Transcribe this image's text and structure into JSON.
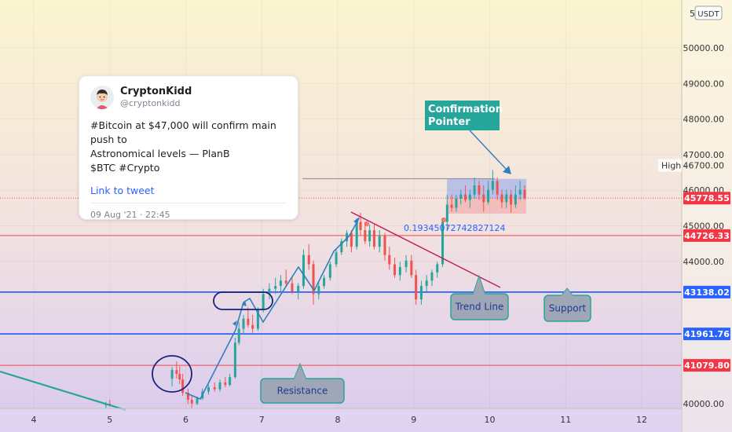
{
  "chart_data": {
    "type": "candlestick",
    "x_ticks": [
      "4",
      "5",
      "6",
      "7",
      "8",
      "9",
      "10",
      "11",
      "12"
    ],
    "y_ticks": [
      "40000.00",
      "44000.00",
      "45000.00",
      "46000.00",
      "47000.00",
      "48000.00",
      "49000.00",
      "50000.00"
    ],
    "currency": "USDT",
    "ylim": [
      39850,
      51300
    ],
    "candles": [
      {
        "x": 4.95,
        "o": 39958,
        "h": 40053,
        "l": 39882,
        "c": 39998
      },
      {
        "x": 5.0,
        "o": 39998,
        "h": 40109,
        "l": 39925,
        "c": 39958
      },
      {
        "x": 5.82,
        "o": 40700,
        "h": 41036,
        "l": 40495,
        "c": 40948
      },
      {
        "x": 5.88,
        "o": 40948,
        "h": 41189,
        "l": 40708,
        "c": 40839
      },
      {
        "x": 5.92,
        "o": 40839,
        "h": 41047,
        "l": 40552,
        "c": 40681
      },
      {
        "x": 5.96,
        "o": 40681,
        "h": 40839,
        "l": 40223,
        "c": 40310
      },
      {
        "x": 6.03,
        "o": 40310,
        "h": 40426,
        "l": 39992,
        "c": 40112
      },
      {
        "x": 6.08,
        "o": 40112,
        "h": 40223,
        "l": 39882,
        "c": 40004
      },
      {
        "x": 6.15,
        "o": 40004,
        "h": 40201,
        "l": 39958,
        "c": 40152
      },
      {
        "x": 6.22,
        "o": 40152,
        "h": 40426,
        "l": 40109,
        "c": 40343
      },
      {
        "x": 6.3,
        "o": 40343,
        "h": 40530,
        "l": 40256,
        "c": 40462
      },
      {
        "x": 6.38,
        "o": 40462,
        "h": 40599,
        "l": 40343,
        "c": 40408
      },
      {
        "x": 6.45,
        "o": 40408,
        "h": 40681,
        "l": 40343,
        "c": 40599
      },
      {
        "x": 6.52,
        "o": 40599,
        "h": 40750,
        "l": 40462,
        "c": 40530
      },
      {
        "x": 6.58,
        "o": 40530,
        "h": 40839,
        "l": 40495,
        "c": 40750
      },
      {
        "x": 6.65,
        "o": 40750,
        "h": 41862,
        "l": 40708,
        "c": 41717
      },
      {
        "x": 6.7,
        "o": 41717,
        "h": 42286,
        "l": 41647,
        "c": 42108
      },
      {
        "x": 6.76,
        "o": 42108,
        "h": 42498,
        "l": 41956,
        "c": 42390
      },
      {
        "x": 6.82,
        "o": 42390,
        "h": 42710,
        "l": 42141,
        "c": 42212
      },
      {
        "x": 6.88,
        "o": 42212,
        "h": 42498,
        "l": 41997,
        "c": 42108
      },
      {
        "x": 6.95,
        "o": 42108,
        "h": 42710,
        "l": 42042,
        "c": 42635
      },
      {
        "x": 7.02,
        "o": 42635,
        "h": 43231,
        "l": 42564,
        "c": 43082
      },
      {
        "x": 7.1,
        "o": 43082,
        "h": 43385,
        "l": 42933,
        "c": 43231
      },
      {
        "x": 7.18,
        "o": 43231,
        "h": 43538,
        "l": 43082,
        "c": 43309
      },
      {
        "x": 7.25,
        "o": 43309,
        "h": 43614,
        "l": 43157,
        "c": 43461
      },
      {
        "x": 7.32,
        "o": 43461,
        "h": 43766,
        "l": 43309,
        "c": 43385
      },
      {
        "x": 7.4,
        "o": 43385,
        "h": 43538,
        "l": 43082,
        "c": 43157
      },
      {
        "x": 7.48,
        "o": 43157,
        "h": 43385,
        "l": 42933,
        "c": 43309
      },
      {
        "x": 7.55,
        "o": 43309,
        "h": 44336,
        "l": 43231,
        "c": 44180
      },
      {
        "x": 7.62,
        "o": 44180,
        "h": 44490,
        "l": 43766,
        "c": 43919
      },
      {
        "x": 7.68,
        "o": 43919,
        "h": 44024,
        "l": 42786,
        "c": 43082
      },
      {
        "x": 7.75,
        "o": 43082,
        "h": 43461,
        "l": 42932,
        "c": 43309
      },
      {
        "x": 7.82,
        "o": 43309,
        "h": 43614,
        "l": 43231,
        "c": 43538
      },
      {
        "x": 7.9,
        "o": 43538,
        "h": 43994,
        "l": 43461,
        "c": 43919
      },
      {
        "x": 7.98,
        "o": 43919,
        "h": 44336,
        "l": 43843,
        "c": 44257
      },
      {
        "x": 8.05,
        "o": 44257,
        "h": 44647,
        "l": 44180,
        "c": 44567
      },
      {
        "x": 8.12,
        "o": 44567,
        "h": 44877,
        "l": 44412,
        "c": 44799
      },
      {
        "x": 8.18,
        "o": 44799,
        "h": 44877,
        "l": 44257,
        "c": 44412
      },
      {
        "x": 8.25,
        "o": 44412,
        "h": 45205,
        "l": 44336,
        "c": 45110
      },
      {
        "x": 8.3,
        "o": 45110,
        "h": 45364,
        "l": 44722,
        "c": 44877
      },
      {
        "x": 8.36,
        "o": 44877,
        "h": 45110,
        "l": 44490,
        "c": 44567
      },
      {
        "x": 8.42,
        "o": 44567,
        "h": 45034,
        "l": 44412,
        "c": 44877
      },
      {
        "x": 8.48,
        "o": 44877,
        "h": 45034,
        "l": 44336,
        "c": 44412
      },
      {
        "x": 8.55,
        "o": 44412,
        "h": 44877,
        "l": 44257,
        "c": 44722
      },
      {
        "x": 8.62,
        "o": 44722,
        "h": 44799,
        "l": 44024,
        "c": 44180
      },
      {
        "x": 8.68,
        "o": 44180,
        "h": 44412,
        "l": 43766,
        "c": 43919
      },
      {
        "x": 8.75,
        "o": 43919,
        "h": 44102,
        "l": 43538,
        "c": 43614
      },
      {
        "x": 8.82,
        "o": 43614,
        "h": 43994,
        "l": 43461,
        "c": 43843
      },
      {
        "x": 8.9,
        "o": 43843,
        "h": 44180,
        "l": 43690,
        "c": 44024
      },
      {
        "x": 8.97,
        "o": 44024,
        "h": 44180,
        "l": 43538,
        "c": 43614
      },
      {
        "x": 9.03,
        "o": 43614,
        "h": 43766,
        "l": 42786,
        "c": 42933
      },
      {
        "x": 9.1,
        "o": 42933,
        "h": 43461,
        "l": 42786,
        "c": 43309
      },
      {
        "x": 9.17,
        "o": 43309,
        "h": 43614,
        "l": 43157,
        "c": 43461
      },
      {
        "x": 9.24,
        "o": 43461,
        "h": 43766,
        "l": 43309,
        "c": 43690
      },
      {
        "x": 9.31,
        "o": 43690,
        "h": 43994,
        "l": 43538,
        "c": 43919
      },
      {
        "x": 9.38,
        "o": 43919,
        "h": 45205,
        "l": 43843,
        "c": 45110
      },
      {
        "x": 9.44,
        "o": 45110,
        "h": 45880,
        "l": 44877,
        "c": 45597
      },
      {
        "x": 9.5,
        "o": 45597,
        "h": 45880,
        "l": 45397,
        "c": 45506
      },
      {
        "x": 9.56,
        "o": 45506,
        "h": 45880,
        "l": 45397,
        "c": 45763
      },
      {
        "x": 9.62,
        "o": 45763,
        "h": 46011,
        "l": 45597,
        "c": 45880
      },
      {
        "x": 9.68,
        "o": 45880,
        "h": 46136,
        "l": 45664,
        "c": 45730
      },
      {
        "x": 9.74,
        "o": 45730,
        "h": 46011,
        "l": 45506,
        "c": 45880
      },
      {
        "x": 9.8,
        "o": 45880,
        "h": 46357,
        "l": 45763,
        "c": 46136
      },
      {
        "x": 9.86,
        "o": 46136,
        "h": 46261,
        "l": 45730,
        "c": 45880
      },
      {
        "x": 9.92,
        "o": 45880,
        "h": 46136,
        "l": 45397,
        "c": 45664
      },
      {
        "x": 9.98,
        "o": 45664,
        "h": 46261,
        "l": 45597,
        "c": 46011
      },
      {
        "x": 10.04,
        "o": 46011,
        "h": 46570,
        "l": 45880,
        "c": 46261
      },
      {
        "x": 10.1,
        "o": 46261,
        "h": 46357,
        "l": 45730,
        "c": 45880
      },
      {
        "x": 10.16,
        "o": 45880,
        "h": 46011,
        "l": 45506,
        "c": 45664
      },
      {
        "x": 10.22,
        "o": 45664,
        "h": 46011,
        "l": 45506,
        "c": 45880
      },
      {
        "x": 10.28,
        "o": 45880,
        "h": 46011,
        "l": 45364,
        "c": 45597
      },
      {
        "x": 10.34,
        "o": 45597,
        "h": 46136,
        "l": 45506,
        "c": 45880
      },
      {
        "x": 10.4,
        "o": 45880,
        "h": 46261,
        "l": 45730,
        "c": 46011
      },
      {
        "x": 10.46,
        "o": 46011,
        "h": 46136,
        "l": 45730,
        "c": 45778
      }
    ],
    "horizontal_lines": [
      {
        "value": 46700,
        "label": "46700.00",
        "tag": "High",
        "color": "#9c9aa0"
      },
      {
        "value": 45778.55,
        "label": "45778.55",
        "color": "#f23645"
      },
      {
        "value": 44726.33,
        "label": "44726.33",
        "color": "#f23645"
      },
      {
        "value": 43138.02,
        "label": "43138.02",
        "color": "#2962ff"
      },
      {
        "value": 41961.76,
        "label": "41961.76",
        "color": "#2962ff"
      },
      {
        "value": 41079.8,
        "label": "41079.80",
        "color": "#f23645"
      }
    ],
    "annotations": {
      "confirmation": "Confirmation Pointer",
      "trend_line": "Trend Line",
      "support": "Support",
      "resistance": "Resistance",
      "ratio_text": "0.19345072742827124",
      "top_tick": "5"
    },
    "colors": {
      "up": "#26a69a",
      "down": "#ef5350",
      "support": "#2962ff",
      "resistance": "#f23645",
      "teal": "#26a69a"
    }
  },
  "tweet": {
    "name": "CryptonKidd",
    "handle": "@cryptonkidd",
    "line1": "#Bitcoin at $47,000 will confirm main push to",
    "line2": "Astronomical levels — PlanB",
    "line3": "$BTC #Crypto",
    "link": "Link to tweet",
    "time": "09 Aug '21 · 22:45"
  }
}
